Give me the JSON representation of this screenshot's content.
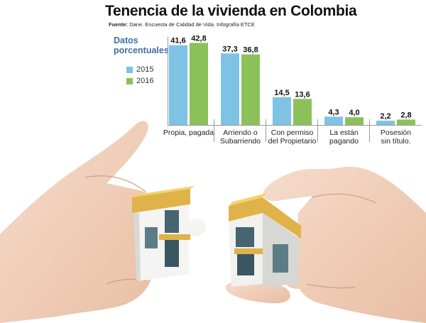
{
  "title": "Tenencia de la vivienda en Colombia",
  "source_label": "Fuente:",
  "source_text": "Dane. Encuesta de Calidad de Vida. Infografía ETCE",
  "units_label_line1": "Datos",
  "units_label_line2": "porcentuales",
  "colors": {
    "s2015": "#7ec3e4",
    "s2016": "#8cc15a",
    "title": "#111111",
    "units": "#3f6fa8"
  },
  "chart_data": {
    "type": "bar",
    "categories": [
      "Propia, pagada",
      "Arriendo o Subarriendo",
      "Con permiso del Propietario",
      "La están pagando",
      "Posesión sin título."
    ],
    "category_lines": [
      [
        "Propia, pagada"
      ],
      [
        "Arriendo o",
        "Subarriendo"
      ],
      [
        "Con permiso",
        "del Propietario"
      ],
      [
        "La están",
        "pagando"
      ],
      [
        "Posesión",
        "sin título."
      ]
    ],
    "series": [
      {
        "name": "2015",
        "values": [
          41.6,
          37.3,
          14.5,
          4.3,
          2.2
        ],
        "labels": [
          "41,6",
          "37,3",
          "14,5",
          "4,3",
          "2,2"
        ]
      },
      {
        "name": "2016",
        "values": [
          42.8,
          36.8,
          13.6,
          4.0,
          2.8
        ],
        "labels": [
          "42,8",
          "36,8",
          "13,6",
          "4,0",
          "2,8"
        ]
      }
    ],
    "legend": "left"
  }
}
